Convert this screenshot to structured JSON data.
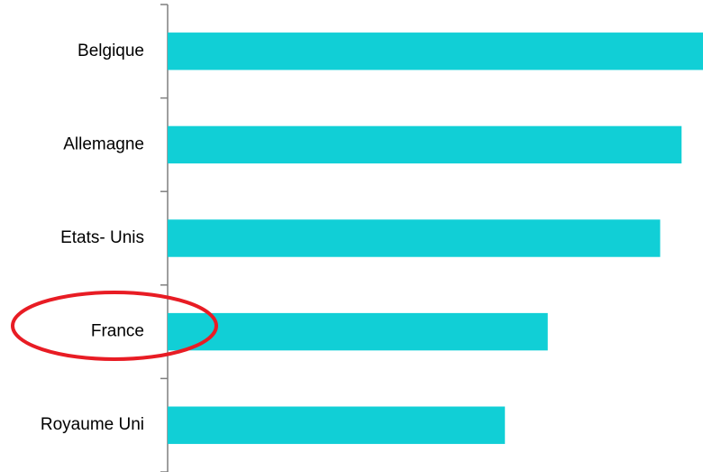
{
  "chart_data": {
    "type": "bar",
    "orientation": "horizontal",
    "categories": [
      "Belgique",
      "Allemagne",
      "Etats- Unis",
      "France",
      "Royaume Uni"
    ],
    "values": [
      100,
      96,
      92,
      71,
      63
    ],
    "color": "#11cfd6",
    "xlim": [
      0,
      100
    ]
  }
}
